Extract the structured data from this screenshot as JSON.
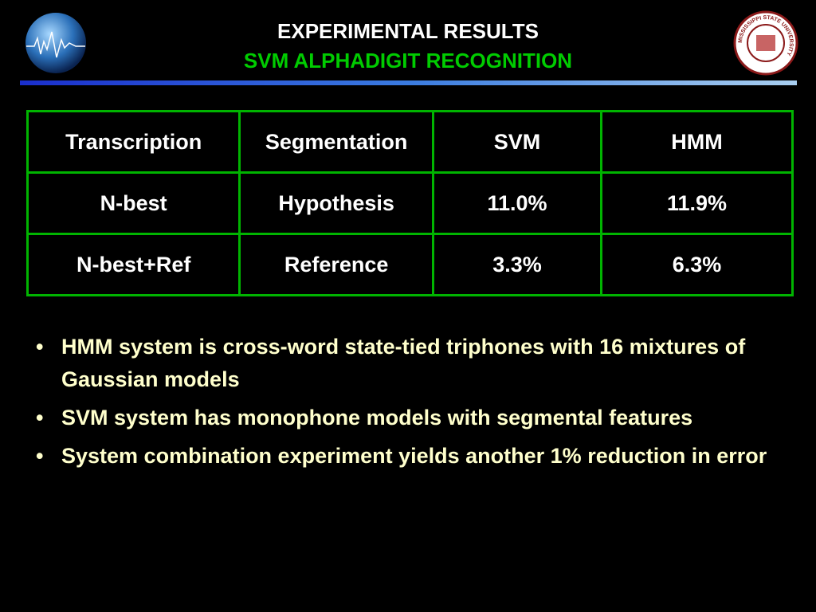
{
  "header": {
    "title": "EXPERIMENTAL RESULTS",
    "subtitle": "SVM ALPHADIGIT RECOGNITION",
    "seal_text": "MISSISSIPPI STATE UNIVERSITY"
  },
  "table": {
    "columns": [
      "Transcription",
      "Segmentation",
      "SVM",
      "HMM"
    ],
    "rows": [
      [
        "N-best",
        "Hypothesis",
        "11.0%",
        "11.9%"
      ],
      [
        "N-best+Ref",
        "Reference",
        "3.3%",
        "6.3%"
      ]
    ]
  },
  "bullets": [
    "HMM system is cross-word state-tied triphones with 16 mixtures of Gaussian models",
    "SVM system has monophone models with segmental features",
    "System combination experiment yields another 1% reduction in error"
  ]
}
